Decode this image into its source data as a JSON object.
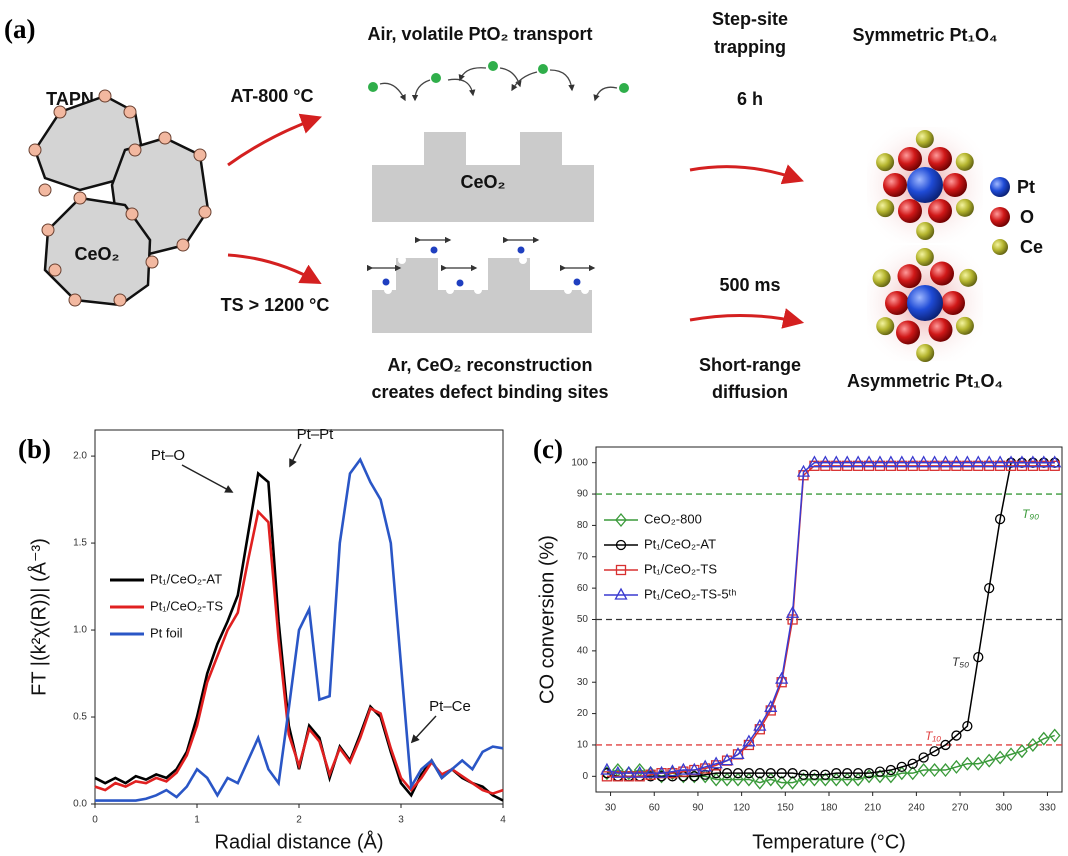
{
  "schematic": {
    "panel_label": "(a)",
    "tapn": "TAPN",
    "blob_label": "CeO₂",
    "at_condition": "AT-800 °C",
    "ts_condition": "TS > 1200 °C",
    "top_caption": "Air, volatile PtO₂ transport",
    "slab_label": "CeO₂",
    "bottom_caption": [
      "Ar, CeO₂ reconstruction",
      "creates defect binding sites"
    ],
    "top_step": [
      "Step-site",
      "trapping"
    ],
    "top_time": "6 h",
    "bottom_time": "500 ms",
    "bottom_step": [
      "Short-range",
      "diffusion"
    ],
    "top_product": "Symmetric Pt₁O₄",
    "bottom_product": "Asymmetric Pt₁O₄",
    "legend": [
      "Pt",
      "O",
      "Ce"
    ]
  },
  "chart_data": [
    {
      "type": "line",
      "panel_label": "(b)",
      "x_label": "Radial distance (Å)",
      "y_label": "FT |(k²χ(R))| (Å⁻³)",
      "x": [
        0,
        0.1,
        0.2,
        0.3,
        0.4,
        0.5,
        0.6,
        0.7,
        0.8,
        0.9,
        1,
        1.1,
        1.2,
        1.3,
        1.4,
        1.5,
        1.6,
        1.7,
        1.8,
        1.9,
        2,
        2.1,
        2.2,
        2.3,
        2.4,
        2.5,
        2.6,
        2.7,
        2.8,
        2.9,
        3,
        3.1,
        3.2,
        3.3,
        3.4,
        3.5,
        3.6,
        3.7,
        3.8,
        3.9,
        4
      ],
      "series": [
        {
          "name": "Pt₁/CeO₂-AT",
          "color": "#000000",
          "values": [
            0.15,
            0.12,
            0.15,
            0.12,
            0.16,
            0.14,
            0.17,
            0.15,
            0.2,
            0.3,
            0.5,
            0.75,
            0.92,
            1.05,
            1.2,
            1.55,
            1.9,
            1.85,
            1.05,
            0.45,
            0.2,
            0.45,
            0.38,
            0.15,
            0.33,
            0.25,
            0.4,
            0.56,
            0.5,
            0.3,
            0.12,
            0.05,
            0.17,
            0.25,
            0.15,
            0.2,
            0.15,
            0.12,
            0.1,
            0.05,
            0.02
          ]
        },
        {
          "name": "Pt₁/CeO₂-TS",
          "color": "#e02020",
          "values": [
            0.1,
            0.08,
            0.12,
            0.1,
            0.13,
            0.12,
            0.15,
            0.13,
            0.18,
            0.28,
            0.45,
            0.7,
            0.85,
            1.0,
            1.1,
            1.4,
            1.68,
            1.62,
            0.95,
            0.4,
            0.22,
            0.43,
            0.36,
            0.17,
            0.32,
            0.24,
            0.38,
            0.55,
            0.52,
            0.32,
            0.15,
            0.08,
            0.15,
            0.24,
            0.17,
            0.2,
            0.16,
            0.12,
            0.08,
            0.06,
            0.08
          ]
        },
        {
          "name": "Pt foil",
          "color": "#2a56c6",
          "values": [
            0.02,
            0.02,
            0.02,
            0.02,
            0.02,
            0.03,
            0.05,
            0.08,
            0.04,
            0.1,
            0.2,
            0.15,
            0.05,
            0.15,
            0.12,
            0.25,
            0.38,
            0.2,
            0.12,
            0.55,
            1.0,
            1.12,
            0.6,
            0.62,
            1.5,
            1.9,
            1.98,
            1.85,
            1.75,
            1.5,
            0.8,
            0.1,
            0.2,
            0.25,
            0.15,
            0.2,
            0.25,
            0.2,
            0.3,
            0.33,
            0.32
          ]
        }
      ],
      "annotations": [
        "Pt–O",
        "Pt–Pt",
        "Pt–Ce"
      ],
      "xlim": [
        0,
        4
      ],
      "xticks": [
        0,
        1,
        2,
        3,
        4
      ],
      "ylim": [
        0,
        2.15
      ],
      "yticks": [
        {
          "value": 0,
          "label": "0.0"
        },
        {
          "value": 0.5,
          "label": "0.5"
        },
        {
          "value": 1,
          "label": "1.0"
        },
        {
          "value": 1.5,
          "label": "1.5"
        },
        {
          "value": 2,
          "label": "2.0"
        }
      ],
      "legend": "middle left"
    },
    {
      "type": "line",
      "panel_label": "(c)",
      "x_label": "Temperature (°C)",
      "y_label": "CO conversion (%)",
      "x": [
        27.5,
        35,
        42.5,
        50,
        57.5,
        65,
        72.5,
        80,
        87.5,
        95,
        102.5,
        110,
        117.5,
        125,
        132.5,
        140,
        147.5,
        155,
        162.5,
        170,
        177.5,
        185,
        192.5,
        200,
        207.5,
        215,
        222.5,
        230,
        237.5,
        245,
        252.5,
        260,
        267.5,
        275,
        282.5,
        290,
        297.5,
        305,
        312.5,
        320,
        327.5,
        335
      ],
      "series": [
        {
          "name": "CeO₂-800",
          "color": "#3a9a3a",
          "marker": "diamond",
          "values": [
            1,
            2,
            1,
            2,
            1,
            0,
            1,
            0,
            0,
            0,
            -1,
            -1,
            -1,
            -1,
            -2,
            -1,
            -2,
            -2,
            -1,
            -1,
            -1,
            -1,
            -1,
            -1,
            0,
            0,
            0,
            1,
            1,
            2,
            2,
            2,
            3,
            4,
            4,
            5,
            6,
            7,
            8,
            10,
            12,
            13
          ]
        },
        {
          "name": "Pt₁/CeO₂-AT",
          "color": "#000000",
          "marker": "circle",
          "values": [
            1,
            0,
            0,
            0,
            0,
            0,
            0,
            0,
            0,
            0.5,
            1,
            1,
            1,
            1,
            1,
            1,
            1,
            1,
            0.5,
            0.5,
            0.5,
            1,
            1,
            1,
            1,
            1.5,
            2,
            3,
            4,
            6,
            8,
            10,
            13,
            16,
            38,
            60,
            82,
            100,
            100,
            100,
            100,
            100
          ]
        },
        {
          "name": "Pt₁/CeO₂-TS",
          "color": "#d83030",
          "marker": "square",
          "values": [
            0,
            0,
            0,
            0,
            0.5,
            1,
            1,
            1.5,
            2,
            2.5,
            3.5,
            5,
            7,
            10,
            15,
            21,
            30,
            50,
            96,
            99,
            99,
            99,
            99,
            99,
            99,
            99,
            99,
            99,
            99,
            99,
            99,
            99,
            99,
            99,
            99,
            99,
            99,
            99,
            99,
            99,
            99,
            99
          ]
        },
        {
          "name": "Pt₁/CeO₂-TS-5ᵗʰ",
          "color": "#3a3ad0",
          "marker": "triangle",
          "values": [
            2,
            1,
            1,
            1,
            1,
            1,
            1.5,
            2,
            2,
            3,
            4,
            5,
            7,
            11,
            16,
            22,
            31,
            52,
            97,
            100,
            100,
            100,
            100,
            100,
            100,
            100,
            100,
            100,
            100,
            100,
            100,
            100,
            100,
            100,
            100,
            100,
            100,
            100,
            100,
            100,
            100,
            100
          ]
        }
      ],
      "reference_lines": [
        {
          "value": 90,
          "color": "#3a9a3a",
          "label": "T₉₀"
        },
        {
          "value": 50,
          "color": "#333333",
          "label": "T₅₀"
        },
        {
          "value": 10,
          "color": "#e04040",
          "label": "T₁₀"
        }
      ],
      "xlim": [
        20,
        340
      ],
      "xticks": [
        30,
        60,
        90,
        120,
        150,
        180,
        210,
        240,
        270,
        300,
        330
      ],
      "ylim": [
        -5,
        105
      ],
      "yticks": [
        0,
        10,
        20,
        30,
        40,
        50,
        60,
        70,
        80,
        90,
        100
      ],
      "legend": "upper left"
    }
  ]
}
